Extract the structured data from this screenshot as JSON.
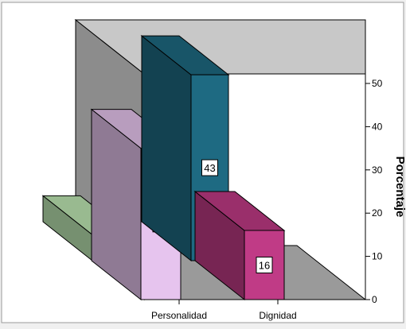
{
  "chart_data": {
    "type": "bar",
    "categories": [
      "Personalidad",
      "Dignidad"
    ],
    "ylabel": "Porcentaje",
    "ylim": [
      0,
      50
    ],
    "ticks": [
      0,
      10,
      20,
      30,
      40,
      50
    ],
    "grid": false,
    "series": [
      {
        "values": [
          6,
          43
        ],
        "colors": [
          "#bfe9b4",
          "#1e6a82"
        ]
      },
      {
        "values": [
          35,
          16
        ],
        "colors": [
          "#e6c4ee",
          "#c03b86"
        ]
      }
    ],
    "data_labels": [
      [
        "6",
        "35"
      ],
      [
        "43",
        "16"
      ]
    ]
  }
}
